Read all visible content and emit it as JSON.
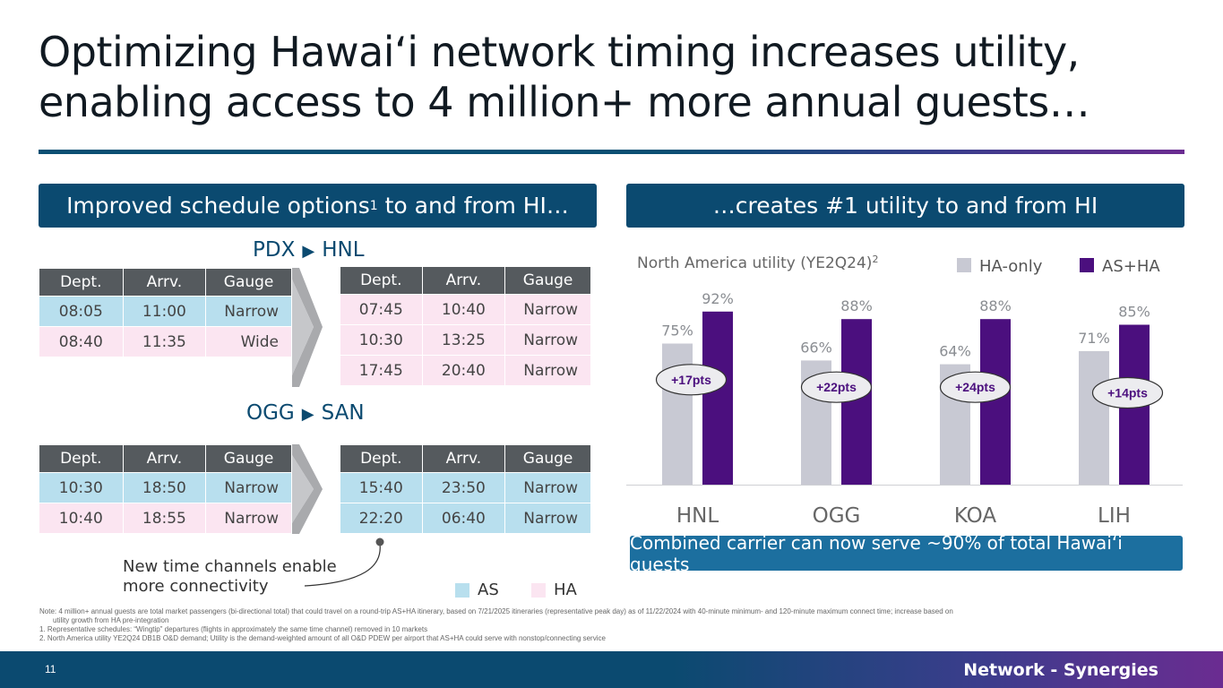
{
  "slide": {
    "title_line1": "Optimizing Hawai‘i network timing increases utility,",
    "title_line2": "enabling access to 4 million+ more annual guests…",
    "page_number": "11",
    "section": "Network - Synergies",
    "accent_colors": {
      "navy": "#0b4a70",
      "purple": "#4b0f7e",
      "grey": "#c8c9d3",
      "as_blue": "#b8dfee",
      "ha_pink": "#fbe5f1"
    }
  },
  "left_panel": {
    "banner_text": "Improved schedule options",
    "banner_sup": "1",
    "banner_suffix": " to and from HI…",
    "columns": [
      "Dept.",
      "Arrv.",
      "Gauge"
    ],
    "routes": [
      {
        "name_from": "PDX",
        "arrow": "▶",
        "name_to": "HNL",
        "before": [
          {
            "carrier": "AS",
            "dept": "08:05",
            "arrv": "11:00",
            "gauge": "Narrow"
          },
          {
            "carrier": "HA",
            "dept": "08:40",
            "arrv": "11:35",
            "gauge": "Wide"
          }
        ],
        "after": [
          {
            "carrier": "HA",
            "dept": "07:45",
            "arrv": "10:40",
            "gauge": "Narrow"
          },
          {
            "carrier": "HA",
            "dept": "10:30",
            "arrv": "13:25",
            "gauge": "Narrow"
          },
          {
            "carrier": "HA",
            "dept": "17:45",
            "arrv": "20:40",
            "gauge": "Narrow"
          }
        ]
      },
      {
        "name_from": "OGG",
        "arrow": "▶",
        "name_to": "SAN",
        "before": [
          {
            "carrier": "AS",
            "dept": "10:30",
            "arrv": "18:50",
            "gauge": "Narrow"
          },
          {
            "carrier": "HA",
            "dept": "10:40",
            "arrv": "18:55",
            "gauge": "Narrow"
          }
        ],
        "after": [
          {
            "carrier": "AS",
            "dept": "15:40",
            "arrv": "23:50",
            "gauge": "Narrow"
          },
          {
            "carrier": "AS",
            "dept": "22:20",
            "arrv": "06:40",
            "gauge": "Narrow"
          }
        ]
      }
    ],
    "callout_line1": "New time channels enable",
    "callout_line2": "more connectivity",
    "legend": [
      {
        "label": "AS",
        "color": "#b8dfee"
      },
      {
        "label": "HA",
        "color": "#fbe5f1"
      }
    ]
  },
  "right_panel": {
    "banner_text": "…creates #1 utility to and from HI",
    "combined_text": "Combined carrier can now serve ~90% of total Hawai‘i guests"
  },
  "chart_data": {
    "type": "bar",
    "title": "North America utility (YE2Q24)",
    "title_sup": "2",
    "categories": [
      "HNL",
      "OGG",
      "KOA",
      "LIH"
    ],
    "series": [
      {
        "name": "HA-only",
        "color": "#c8c9d3",
        "values": [
          75,
          66,
          64,
          71
        ],
        "labels": [
          "75%",
          "66%",
          "64%",
          "71%"
        ]
      },
      {
        "name": "AS+HA",
        "color": "#4b0f7e",
        "values": [
          92,
          88,
          88,
          85
        ],
        "labels": [
          "92%",
          "88%",
          "88%",
          "85%"
        ]
      }
    ],
    "deltas": [
      "+17pts",
      "+22pts",
      "+24pts",
      "+14pts"
    ],
    "ylim": [
      0,
      100
    ],
    "grid": false,
    "legend_position": "top-right"
  },
  "notes": {
    "line1": "Note: 4 million+ annual guests are total market passengers (bi-directional total) that could travel on a round-trip AS+HA itinerary, based on 7/21/2025 itineraries (representative peak day) as of 11/22/2024 with 40-minute minimum- and 120-minute maximum connect time; increase based on",
    "line1b": "utility growth from HA pre-integration",
    "line2": "1.   Representative schedules: “Wingtip” departures (flights in approximately the same time channel) removed in 10 markets",
    "line3": "2.   North America utility YE2Q24 DB1B O&D demand; Utility is the demand-weighted amount of all O&D PDEW per airport that AS+HA could serve with nonstop/connecting service"
  }
}
